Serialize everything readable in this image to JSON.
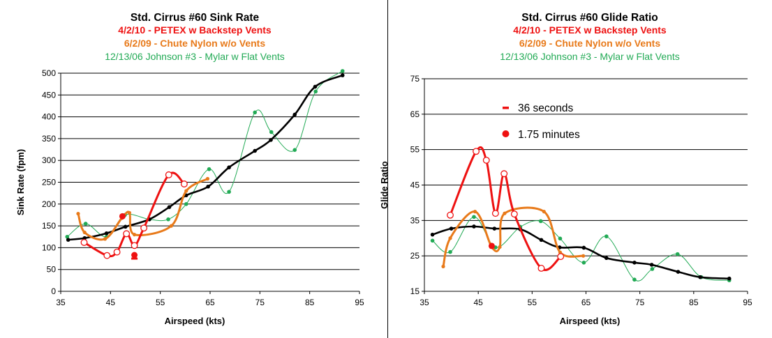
{
  "colors": {
    "red": "#ee1111",
    "orange": "#e87a1a",
    "green": "#22aa55",
    "black": "#000000"
  },
  "chart_data": [
    {
      "type": "line",
      "title": "Std. Cirrus #60 Sink Rate",
      "subtitles": [
        "4/2/10 - PETEX w Backstep Vents",
        "6/2/09 - Chute Nylon w/o Vents",
        "12/13/06 Johnson #3 - Mylar w Flat Vents"
      ],
      "xlabel": "Airspeed (kts)",
      "ylabel": "Sink Rate (fpm)",
      "xlim": [
        35,
        95
      ],
      "ylim": [
        0,
        500
      ],
      "xticks": [
        35,
        45,
        55,
        65,
        75,
        85,
        95
      ],
      "yticks": [
        0,
        50,
        100,
        150,
        200,
        250,
        300,
        350,
        400,
        450,
        500
      ],
      "grid": "horizontal",
      "series": [
        {
          "color": "red",
          "style": "thick-open",
          "x": [
            39.7,
            44.3,
            46.3,
            48.2,
            49.8,
            51.7,
            56.7,
            59.8
          ],
          "y": [
            112,
            82,
            90,
            132,
            105,
            145,
            267,
            246
          ]
        },
        {
          "color": "orange",
          "style": "thick-filled",
          "x": [
            38.5,
            39.8,
            43.9,
            47.3,
            48.8,
            49.8,
            57.2,
            60.2,
            64.5
          ],
          "y": [
            178,
            135,
            120,
            168,
            180,
            130,
            150,
            230,
            258
          ]
        },
        {
          "color": "green",
          "style": "thin",
          "x": [
            36.3,
            40,
            44.2,
            47.9,
            52.8,
            56.6,
            60.2,
            64.8,
            68.8,
            74,
            77.3,
            82,
            86.2,
            91.6
          ],
          "y": [
            125,
            155,
            125,
            175,
            165,
            165,
            200,
            280,
            228,
            410,
            365,
            324,
            458,
            505
          ]
        },
        {
          "color": "black",
          "style": "fit",
          "x": [
            36.5,
            39.8,
            44.2,
            48,
            52.8,
            56.8,
            60.2,
            64.6,
            68.8,
            74,
            77.2,
            82,
            86.1,
            91.6
          ],
          "y": [
            118,
            122,
            133,
            148,
            165,
            193,
            220,
            240,
            284,
            322,
            347,
            405,
            469,
            495
          ]
        }
      ],
      "markers": [
        {
          "label": "36 seconds",
          "color": "red",
          "shape": "dash",
          "x": 49.8,
          "y": 75
        },
        {
          "label": "1.75 minutes",
          "color": "red",
          "shape": "dot",
          "x": 49.8,
          "y": 83
        },
        {
          "label": "1.75 minutes",
          "color": "red",
          "shape": "dot",
          "x": 47.4,
          "y": 172
        }
      ]
    },
    {
      "type": "line",
      "title": "Std. Cirrus #60 Glide Ratio",
      "subtitles": [
        "4/2/10 - PETEX w Backstep Vents",
        "6/2/09 - Chute Nylon w/o Vents",
        "12/13/06 Johnson #3 - Mylar w Flat Vents"
      ],
      "xlabel": "Airspeed (kts)",
      "ylabel": "Glide Ratio",
      "xlim": [
        35,
        95
      ],
      "ylim": [
        15,
        75
      ],
      "xticks": [
        35,
        45,
        55,
        65,
        75,
        85,
        95
      ],
      "yticks": [
        15,
        25,
        35,
        45,
        55,
        65,
        75
      ],
      "grid": "horizontal",
      "legend": [
        {
          "label": "36 seconds",
          "shape": "dash",
          "color": "red"
        },
        {
          "label": "1.75 minutes",
          "shape": "dot",
          "color": "red"
        }
      ],
      "series": [
        {
          "color": "red",
          "style": "thick-open",
          "x": [
            39.8,
            44.6,
            46.5,
            48.2,
            49.8,
            51.7,
            56.7,
            60.3
          ],
          "y": [
            36.5,
            54.5,
            52,
            37,
            48.2,
            36.8,
            21.5,
            24.8
          ]
        },
        {
          "color": "orange",
          "style": "thick-filled",
          "x": [
            38.5,
            39.8,
            44.4,
            47.5,
            49,
            49.9,
            57.2,
            60.2,
            64.5
          ],
          "y": [
            22,
            30,
            37.5,
            27.5,
            27.5,
            37,
            37.5,
            26,
            25
          ]
        },
        {
          "color": "green",
          "style": "thin",
          "x": [
            36.5,
            39.8,
            44.2,
            48.2,
            52.8,
            56.6,
            60.2,
            64.6,
            68.8,
            74,
            77.3,
            82,
            86.4,
            91.6
          ],
          "y": [
            29.3,
            26.1,
            36,
            27.4,
            33.2,
            34.8,
            29.9,
            23.1,
            30.5,
            18.3,
            21.3,
            25.5,
            19,
            18.1
          ]
        },
        {
          "color": "black",
          "style": "fit",
          "x": [
            36.5,
            40,
            44.2,
            48,
            52.8,
            56.7,
            60.1,
            64.6,
            68.8,
            74,
            77.2,
            82.1,
            86.2,
            91.6
          ],
          "y": [
            31,
            32.7,
            33.3,
            32.7,
            32.5,
            29.5,
            27.4,
            27.3,
            24.4,
            23.1,
            22.5,
            20.5,
            19,
            18.6
          ]
        }
      ],
      "markers": [
        {
          "label": "1.75 minutes",
          "color": "red",
          "shape": "dot",
          "x": 47.5,
          "y": 27.8
        }
      ]
    }
  ]
}
